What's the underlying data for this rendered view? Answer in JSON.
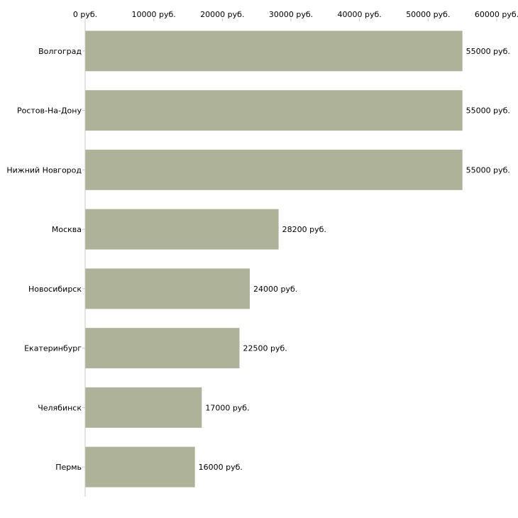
{
  "chart_data": {
    "type": "bar",
    "orientation": "horizontal",
    "title": "",
    "xlabel": "",
    "ylabel": "",
    "xlim": [
      0,
      60000
    ],
    "x_ticks": [
      0,
      10000,
      20000,
      30000,
      40000,
      50000,
      60000
    ],
    "x_tick_labels": [
      "0 руб.",
      "10000 руб.",
      "20000 руб.",
      "30000 руб.",
      "40000 руб.",
      "50000 руб.",
      "60000 руб."
    ],
    "axis_position": "top",
    "grid": false,
    "categories": [
      "Волгоград",
      "Ростов-На-Дону",
      "Нижний Новгород",
      "Москва",
      "Новосибирск",
      "Екатеринбург",
      "Челябинск",
      "Пермь"
    ],
    "values": [
      55000,
      55000,
      55000,
      28200,
      24000,
      22500,
      17000,
      16000
    ],
    "value_labels": [
      "55000 руб.",
      "55000 руб.",
      "55000 руб.",
      "28200 руб.",
      "24000 руб.",
      "22500 руб.",
      "17000 руб.",
      "16000 руб."
    ],
    "bar_color": "#adb299",
    "axis_color": "#c8c8c8"
  }
}
